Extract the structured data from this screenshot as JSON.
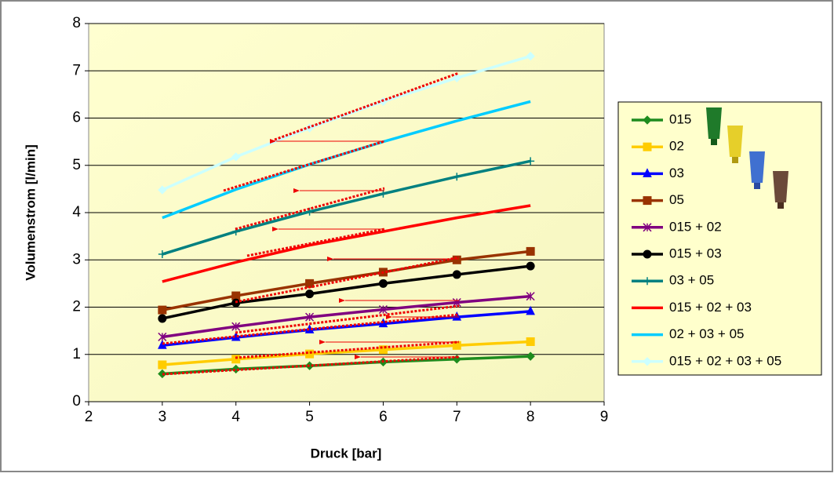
{
  "chart_data": {
    "type": "line",
    "x_label": "Druck [bar]",
    "y_label": "Volumenstrom [l/min]",
    "xlim": [
      2,
      9
    ],
    "xticks": [
      2,
      3,
      4,
      5,
      6,
      7,
      8,
      9
    ],
    "ylim": [
      0,
      8
    ],
    "yticks": [
      0,
      1,
      2,
      3,
      4,
      5,
      6,
      7,
      8
    ],
    "grid": true,
    "x": [
      3,
      4,
      5,
      6,
      7,
      8
    ],
    "series": [
      {
        "name": "015",
        "color": "#1e8c1e",
        "marker": "diamond",
        "values": [
          0.59,
          0.69,
          0.76,
          0.84,
          0.9,
          0.96
        ]
      },
      {
        "name": "02",
        "color": "#ffcc00",
        "marker": "square",
        "values": [
          0.78,
          0.9,
          1.01,
          1.1,
          1.19,
          1.27
        ]
      },
      {
        "name": "03",
        "color": "#0000ff",
        "marker": "triangle",
        "values": [
          1.19,
          1.36,
          1.52,
          1.65,
          1.79,
          1.91
        ]
      },
      {
        "name": "05",
        "color": "#993300",
        "marker": "square",
        "values": [
          1.94,
          2.24,
          2.5,
          2.74,
          3.0,
          3.18
        ]
      },
      {
        "name": "015 + 02",
        "color": "#800080",
        "marker": "star",
        "values": [
          1.37,
          1.59,
          1.79,
          1.95,
          2.1,
          2.23
        ]
      },
      {
        "name": "015 + 03",
        "color": "#000000",
        "marker": "circle",
        "values": [
          1.76,
          2.09,
          2.28,
          2.5,
          2.69,
          2.87
        ]
      },
      {
        "name": "03 + 05",
        "color": "#008080",
        "marker": "plus",
        "values": [
          3.12,
          3.6,
          4.02,
          4.4,
          4.76,
          5.09
        ]
      },
      {
        "name": "015 + 02 + 03",
        "color": "#ff0000",
        "marker": "none",
        "values": [
          2.54,
          2.95,
          3.31,
          3.6,
          3.89,
          4.15
        ]
      },
      {
        "name": "02 + 03 + 05",
        "color": "#00ccff",
        "marker": "none",
        "values": [
          3.89,
          4.49,
          5.02,
          5.5,
          5.94,
          6.35
        ]
      },
      {
        "name": "015 + 02 + 03 + 05",
        "color": "#ccffff",
        "marker": "diamond",
        "values": [
          4.48,
          5.18,
          5.79,
          6.35,
          6.85,
          7.31
        ]
      }
    ]
  }
}
